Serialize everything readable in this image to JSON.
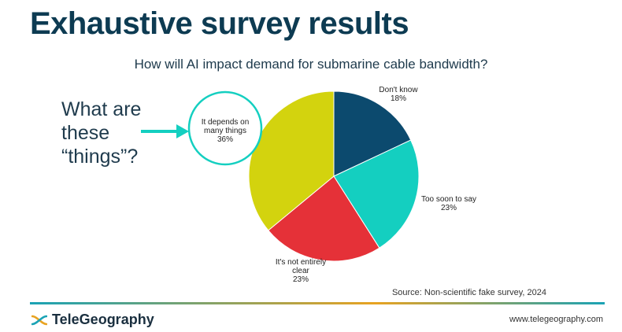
{
  "slide_title": "Exhaustive survey results",
  "callout": {
    "lines": [
      "What are",
      "these",
      "“things”?"
    ]
  },
  "chart_data": {
    "type": "pie",
    "title": "How will AI impact demand for submarine cable bandwidth?",
    "slices": [
      {
        "label_lines": [
          "Don't know"
        ],
        "pct_label": "18%",
        "value": 18,
        "color": "#0c4a6e"
      },
      {
        "label_lines": [
          "Too soon to say"
        ],
        "pct_label": "23%",
        "value": 23,
        "color": "#14cfc0"
      },
      {
        "label_lines": [
          "It's not entirely",
          "clear"
        ],
        "pct_label": "23%",
        "value": 23,
        "color": "#e53138"
      },
      {
        "label_lines": [
          "It depends on",
          "many things"
        ],
        "pct_label": "36%",
        "value": 36,
        "color": "#d3d30e"
      }
    ],
    "start_angle_deg": 0,
    "direction": "clockwise"
  },
  "source_text": "Source: Non-scientific fake survey, 2024",
  "footer": {
    "logo_text": "TeleGeography",
    "website": "www.telegeography.com"
  },
  "colors": {
    "title": "#0d3b52",
    "accent_teal": "#14cfc0",
    "rule_start": "#1aa3b5",
    "rule_end": "#e8a321"
  }
}
